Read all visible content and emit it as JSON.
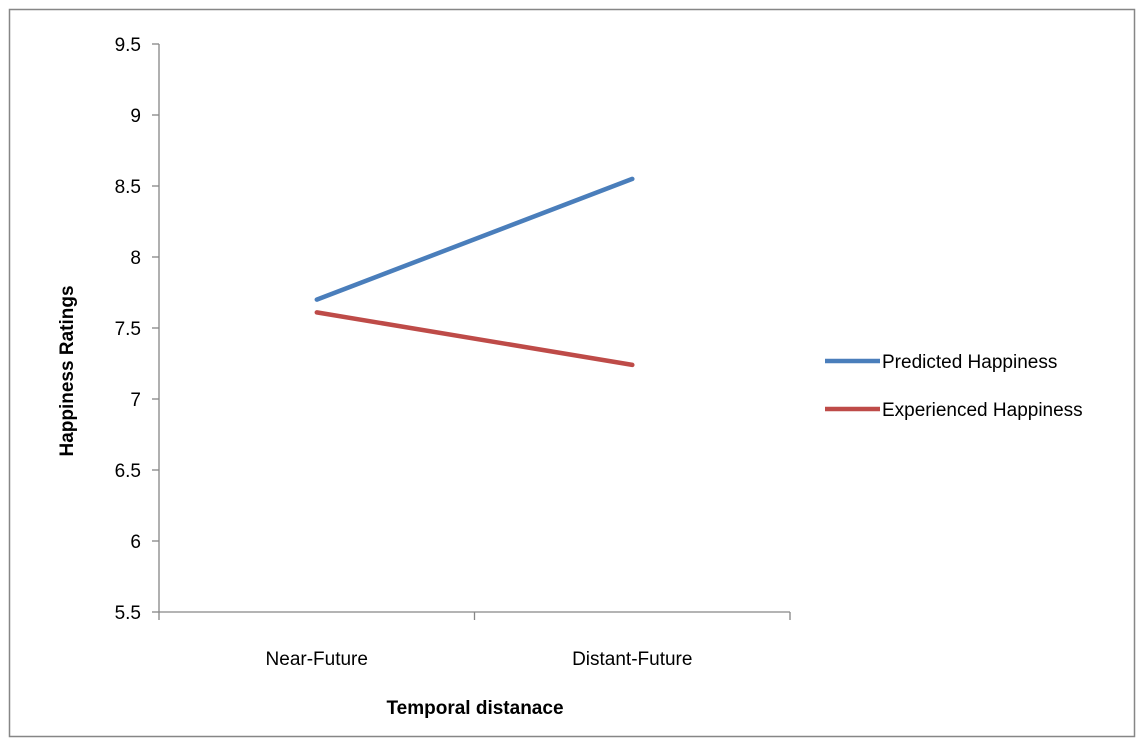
{
  "chart_data": {
    "type": "line",
    "title": "",
    "xlabel": "Temporal distanace",
    "ylabel": "Happiness Ratings",
    "categories": [
      "Near-Future",
      "Distant-Future"
    ],
    "ylim": [
      5.5,
      9.5
    ],
    "yticks": [
      "5.5",
      "6",
      "6.5",
      "7",
      "7.5",
      "8",
      "8.5",
      "9",
      "9.5"
    ],
    "grid": false,
    "legend_position": "right",
    "series": [
      {
        "name": "Predicted Happiness",
        "values": [
          7.7,
          8.55
        ],
        "color": "#4a7ebb"
      },
      {
        "name": "Experienced Happiness",
        "values": [
          7.61,
          7.24
        ],
        "color": "#be4b48"
      }
    ]
  },
  "colors": {
    "frame": "#868686",
    "axis": "#868686",
    "background": "#ffffff"
  }
}
